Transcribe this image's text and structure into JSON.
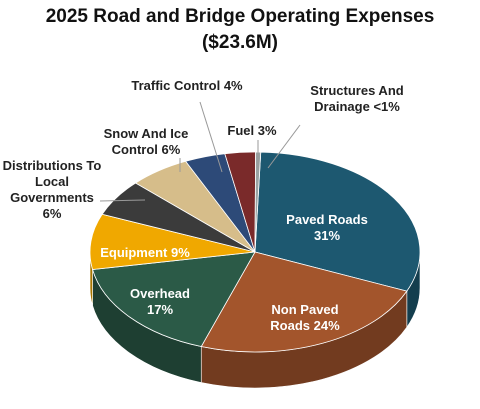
{
  "chart_data": {
    "type": "pie",
    "three_d": true,
    "title": "2025 Road and Bridge Operating Expenses",
    "subtitle": "($23.6M)",
    "categories": [
      "Paved Roads",
      "Non Paved Roads",
      "Overhead",
      "Equipment",
      "Distributions To Local Governments",
      "Snow And Ice Control",
      "Traffic Control",
      "Fuel",
      "Structures And Drainage"
    ],
    "values": [
      31,
      24,
      17,
      9,
      6,
      6,
      4,
      3,
      0.5
    ],
    "value_labels": [
      "31%",
      "24%",
      "17%",
      "9%",
      "6%",
      "6%",
      "4%",
      "3%",
      "<1%"
    ],
    "colors": [
      "#1d5870",
      "#a3552c",
      "#2b5a47",
      "#f0a800",
      "#3b3b3b",
      "#d6bd8a",
      "#2d4a78",
      "#7a2a2a",
      "#9aa3a3"
    ]
  }
}
